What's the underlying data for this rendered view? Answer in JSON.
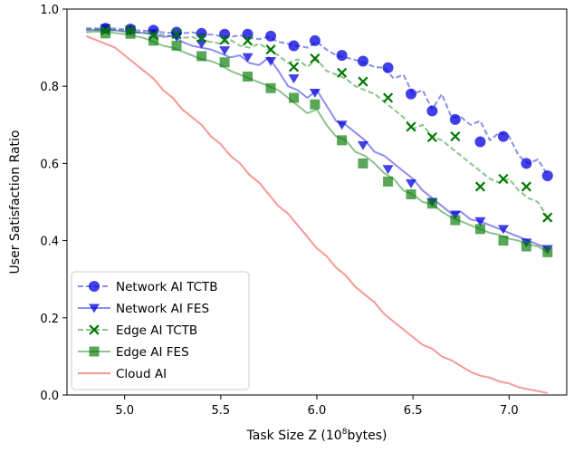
{
  "chart_data": {
    "type": "line",
    "title": "",
    "xlabel": "Task Size Z (10",
    "xlabel_sup": "8",
    "xlabel_suffix": "bytes)",
    "ylabel": "User Satisfaction Ratio",
    "xlim": [
      4.7,
      7.3
    ],
    "ylim": [
      0.0,
      1.0
    ],
    "xticks": [
      "5.0",
      "5.5",
      "6.0",
      "6.5",
      "7.0"
    ],
    "xtick_values": [
      5.0,
      5.5,
      6.0,
      6.5,
      7.0
    ],
    "yticks": [
      "0.0",
      "0.2",
      "0.4",
      "0.6",
      "0.8",
      "1.0"
    ],
    "ytick_values": [
      0.0,
      0.2,
      0.4,
      0.6,
      0.8,
      1.0
    ],
    "grid": false,
    "legend_position": "lower-left",
    "series": [
      {
        "name": "Network AI TCTB",
        "color": "#0000dd",
        "line_style": "dashed",
        "marker": "circle",
        "x": [
          4.8,
          4.85,
          4.9,
          4.95,
          5.0,
          5.05,
          5.1,
          5.15,
          5.2,
          5.25,
          5.3,
          5.35,
          5.4,
          5.45,
          5.5,
          5.55,
          5.6,
          5.65,
          5.7,
          5.75,
          5.8,
          5.85,
          5.9,
          5.95,
          6.0,
          6.05,
          6.1,
          6.15,
          6.2,
          6.25,
          6.3,
          6.35,
          6.4,
          6.45,
          6.5,
          6.55,
          6.6,
          6.65,
          6.7,
          6.75,
          6.8,
          6.85,
          6.9,
          6.95,
          7.0,
          7.05,
          7.1,
          7.15,
          7.2
        ],
        "y": [
          0.95,
          0.95,
          0.948,
          0.95,
          0.947,
          0.945,
          0.944,
          0.942,
          0.94,
          0.938,
          0.937,
          0.94,
          0.935,
          0.934,
          0.93,
          0.928,
          0.932,
          0.925,
          0.922,
          0.928,
          0.915,
          0.91,
          0.905,
          0.9,
          0.915,
          0.895,
          0.88,
          0.875,
          0.868,
          0.86,
          0.85,
          0.848,
          0.82,
          0.83,
          0.78,
          0.79,
          0.74,
          0.78,
          0.72,
          0.72,
          0.7,
          0.71,
          0.66,
          0.68,
          0.67,
          0.62,
          0.6,
          0.61,
          0.57
        ],
        "marker_x": [
          4.9,
          5.03,
          5.15,
          5.27,
          5.4,
          5.52,
          5.64,
          5.76,
          5.88,
          5.99,
          6.13,
          6.24,
          6.37,
          6.49,
          6.6,
          6.72,
          6.85,
          6.97,
          7.09,
          7.2
        ],
        "marker_y": [
          0.95,
          0.948,
          0.945,
          0.94,
          0.937,
          0.935,
          0.935,
          0.93,
          0.905,
          0.918,
          0.88,
          0.865,
          0.848,
          0.78,
          0.736,
          0.714,
          0.656,
          0.67,
          0.6,
          0.568
        ]
      },
      {
        "name": "Network AI FES",
        "color": "#0000dd",
        "line_style": "solid",
        "marker": "triangle-down",
        "x": [
          4.8,
          4.85,
          4.9,
          4.95,
          5.0,
          5.05,
          5.1,
          5.15,
          5.2,
          5.25,
          5.3,
          5.35,
          5.4,
          5.45,
          5.5,
          5.55,
          5.6,
          5.65,
          5.7,
          5.75,
          5.8,
          5.85,
          5.9,
          5.95,
          6.0,
          6.05,
          6.1,
          6.15,
          6.2,
          6.25,
          6.3,
          6.35,
          6.4,
          6.45,
          6.5,
          6.55,
          6.6,
          6.65,
          6.7,
          6.75,
          6.8,
          6.85,
          6.9,
          6.95,
          7.0,
          7.05,
          7.1,
          7.15,
          7.2
        ],
        "y": [
          0.945,
          0.946,
          0.944,
          0.945,
          0.942,
          0.94,
          0.938,
          0.935,
          0.928,
          0.93,
          0.915,
          0.905,
          0.9,
          0.895,
          0.885,
          0.875,
          0.88,
          0.86,
          0.855,
          0.875,
          0.84,
          0.8,
          0.79,
          0.77,
          0.79,
          0.75,
          0.71,
          0.7,
          0.68,
          0.66,
          0.63,
          0.62,
          0.6,
          0.58,
          0.56,
          0.53,
          0.51,
          0.49,
          0.47,
          0.475,
          0.455,
          0.45,
          0.44,
          0.43,
          0.42,
          0.41,
          0.4,
          0.39,
          0.38
        ],
        "marker_x": [
          4.9,
          5.03,
          5.15,
          5.27,
          5.4,
          5.52,
          5.64,
          5.76,
          5.88,
          5.99,
          6.13,
          6.24,
          6.37,
          6.49,
          6.6,
          6.72,
          6.85,
          6.97,
          7.09,
          7.2
        ],
        "marker_y": [
          0.95,
          0.946,
          0.937,
          0.928,
          0.91,
          0.893,
          0.875,
          0.865,
          0.82,
          0.783,
          0.7,
          0.647,
          0.585,
          0.548,
          0.5,
          0.467,
          0.45,
          0.43,
          0.395,
          0.378
        ]
      },
      {
        "name": "Edge AI TCTB",
        "color": "#007700",
        "line_style": "dashed",
        "marker": "x",
        "x": [
          4.8,
          4.85,
          4.9,
          4.95,
          5.0,
          5.05,
          5.1,
          5.15,
          5.2,
          5.25,
          5.3,
          5.35,
          5.4,
          5.45,
          5.5,
          5.55,
          5.6,
          5.65,
          5.7,
          5.75,
          5.8,
          5.85,
          5.9,
          5.95,
          6.0,
          6.05,
          6.1,
          6.15,
          6.2,
          6.25,
          6.3,
          6.35,
          6.4,
          6.45,
          6.5,
          6.55,
          6.6,
          6.65,
          6.7,
          6.75,
          6.8,
          6.85,
          6.9,
          6.95,
          7.0,
          7.05,
          7.1,
          7.15,
          7.2
        ],
        "y": [
          0.948,
          0.947,
          0.945,
          0.946,
          0.943,
          0.94,
          0.938,
          0.936,
          0.933,
          0.93,
          0.925,
          0.928,
          0.918,
          0.915,
          0.91,
          0.92,
          0.905,
          0.9,
          0.91,
          0.895,
          0.88,
          0.86,
          0.87,
          0.85,
          0.87,
          0.84,
          0.83,
          0.82,
          0.8,
          0.79,
          0.78,
          0.76,
          0.74,
          0.72,
          0.69,
          0.7,
          0.67,
          0.66,
          0.64,
          0.62,
          0.6,
          0.58,
          0.56,
          0.55,
          0.56,
          0.53,
          0.51,
          0.5,
          0.46
        ],
        "marker_x": [
          4.9,
          5.03,
          5.15,
          5.27,
          5.4,
          5.52,
          5.64,
          5.76,
          5.88,
          5.99,
          6.13,
          6.24,
          6.37,
          6.49,
          6.6,
          6.72,
          6.85,
          6.97,
          7.09,
          7.2
        ],
        "marker_y": [
          0.945,
          0.946,
          0.933,
          0.935,
          0.925,
          0.92,
          0.918,
          0.895,
          0.85,
          0.872,
          0.835,
          0.812,
          0.77,
          0.695,
          0.668,
          0.67,
          0.54,
          0.56,
          0.54,
          0.46
        ]
      },
      {
        "name": "Edge AI FES",
        "color": "#007700",
        "line_style": "solid",
        "marker": "square",
        "x": [
          4.8,
          4.85,
          4.9,
          4.95,
          5.0,
          5.05,
          5.1,
          5.15,
          5.2,
          5.25,
          5.3,
          5.35,
          5.4,
          5.45,
          5.5,
          5.55,
          5.6,
          5.65,
          5.7,
          5.75,
          5.8,
          5.85,
          5.9,
          5.95,
          6.0,
          6.05,
          6.1,
          6.15,
          6.2,
          6.25,
          6.3,
          6.35,
          6.4,
          6.45,
          6.5,
          6.55,
          6.6,
          6.65,
          6.7,
          6.75,
          6.8,
          6.85,
          6.9,
          6.95,
          7.0,
          7.05,
          7.1,
          7.15,
          7.2
        ],
        "y": [
          0.94,
          0.942,
          0.94,
          0.938,
          0.935,
          0.93,
          0.925,
          0.915,
          0.905,
          0.9,
          0.89,
          0.88,
          0.87,
          0.865,
          0.855,
          0.84,
          0.83,
          0.82,
          0.81,
          0.8,
          0.79,
          0.77,
          0.75,
          0.73,
          0.74,
          0.7,
          0.67,
          0.66,
          0.63,
          0.62,
          0.6,
          0.575,
          0.56,
          0.53,
          0.52,
          0.5,
          0.495,
          0.475,
          0.46,
          0.45,
          0.44,
          0.43,
          0.42,
          0.415,
          0.405,
          0.4,
          0.39,
          0.385,
          0.37
        ],
        "marker_x": [
          4.9,
          5.03,
          5.15,
          5.27,
          5.4,
          5.52,
          5.64,
          5.76,
          5.88,
          5.99,
          6.13,
          6.24,
          6.37,
          6.49,
          6.6,
          6.72,
          6.85,
          6.97,
          7.09,
          7.2
        ],
        "marker_y": [
          0.937,
          0.936,
          0.918,
          0.905,
          0.878,
          0.862,
          0.825,
          0.795,
          0.77,
          0.753,
          0.66,
          0.6,
          0.553,
          0.52,
          0.496,
          0.453,
          0.43,
          0.4,
          0.385,
          0.37
        ]
      },
      {
        "name": "Cloud AI",
        "color": "#ee4444",
        "line_style": "solid",
        "marker": "none",
        "x": [
          4.8,
          4.85,
          4.9,
          4.95,
          5.0,
          5.05,
          5.1,
          5.15,
          5.2,
          5.25,
          5.3,
          5.35,
          5.4,
          5.45,
          5.5,
          5.55,
          5.6,
          5.65,
          5.7,
          5.75,
          5.8,
          5.85,
          5.9,
          5.95,
          6.0,
          6.05,
          6.1,
          6.15,
          6.2,
          6.25,
          6.3,
          6.35,
          6.4,
          6.45,
          6.5,
          6.55,
          6.6,
          6.65,
          6.7,
          6.75,
          6.8,
          6.85,
          6.9,
          6.95,
          7.0,
          7.05,
          7.1,
          7.15,
          7.2
        ],
        "y": [
          0.93,
          0.92,
          0.91,
          0.9,
          0.88,
          0.86,
          0.84,
          0.82,
          0.79,
          0.77,
          0.74,
          0.72,
          0.7,
          0.67,
          0.65,
          0.62,
          0.6,
          0.57,
          0.55,
          0.52,
          0.49,
          0.47,
          0.44,
          0.41,
          0.38,
          0.36,
          0.33,
          0.31,
          0.28,
          0.26,
          0.24,
          0.21,
          0.19,
          0.17,
          0.15,
          0.13,
          0.12,
          0.1,
          0.09,
          0.075,
          0.06,
          0.05,
          0.045,
          0.035,
          0.03,
          0.02,
          0.015,
          0.01,
          0.005
        ]
      }
    ]
  }
}
